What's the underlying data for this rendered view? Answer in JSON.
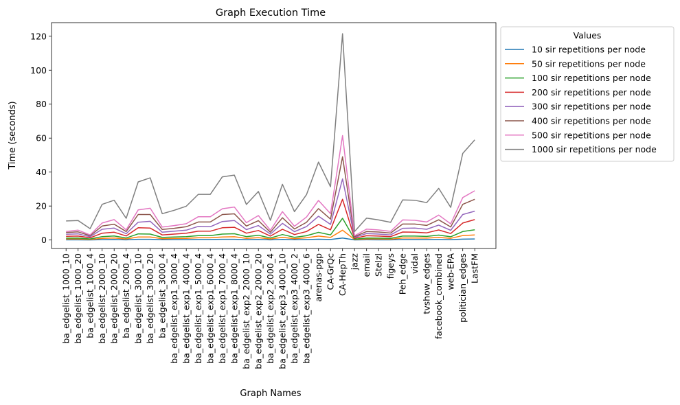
{
  "chart_data": {
    "type": "line",
    "title": "Graph Execution Time",
    "xlabel": "Graph Names",
    "ylabel": "Time (seconds)",
    "ylim": [
      -5,
      128
    ],
    "yticks": [
      0,
      20,
      40,
      60,
      80,
      100,
      120
    ],
    "grid": false,
    "legend": {
      "title": "Values",
      "placement": "outside-top-right"
    },
    "categories": [
      "ba_edgelist_1000_10",
      "ba_edgelist_1000_20",
      "ba_edgelist_1000_4",
      "ba_edgelist_2000_10",
      "ba_edgelist_2000_20",
      "ba_edgelist_2000_4",
      "ba_edgelist_3000_10",
      "ba_edgelist_3000_20",
      "ba_edgelist_3000_4",
      "ba_edgelist_exp1_3000_4",
      "ba_edgelist_exp1_4000_4",
      "ba_edgelist_exp1_5000_4",
      "ba_edgelist_exp1_6000_4",
      "ba_edgelist_exp1_7000_4",
      "ba_edgelist_exp1_8000_4",
      "ba_edgelist_exp2_2000_10",
      "ba_edgelist_exp2_2000_20",
      "ba_edgelist_exp2_2000_4",
      "ba_edgelist_exp3_4000_10",
      "ba_edgelist_exp3_4000_2",
      "ba_edgelist_exp3_4000_6",
      "arenas-pgp",
      "CA-GrQc",
      "CA-HepTh",
      "jazz",
      "email",
      "Stelzl",
      "figeys",
      "Peh_edge",
      "vidal",
      "tvshow_edges",
      "facebook_combined",
      "web-EPA",
      "politician_edges",
      "LastFM"
    ],
    "series": [
      {
        "name": "10 sir repetitions per node",
        "color": "#1f77b4",
        "values": [
          0.1,
          0.1,
          0.05,
          0.2,
          0.25,
          0.1,
          0.4,
          0.4,
          0.15,
          0.2,
          0.2,
          0.3,
          0.3,
          0.4,
          0.4,
          0.2,
          0.3,
          0.1,
          0.35,
          0.15,
          0.25,
          0.45,
          0.3,
          1.2,
          0.05,
          0.15,
          0.1,
          0.1,
          0.25,
          0.25,
          0.25,
          0.3,
          0.2,
          0.5,
          0.6
        ]
      },
      {
        "name": "50 sir repetitions per node",
        "color": "#ff7f0e",
        "values": [
          0.6,
          0.6,
          0.3,
          1.0,
          1.2,
          0.6,
          1.8,
          1.8,
          0.8,
          0.9,
          1.0,
          1.3,
          1.3,
          1.8,
          1.9,
          1.0,
          1.4,
          0.6,
          1.6,
          0.8,
          1.3,
          2.3,
          1.5,
          5.8,
          0.3,
          0.6,
          0.6,
          0.5,
          1.2,
          1.2,
          1.1,
          1.5,
          1.0,
          2.6,
          3.0
        ]
      },
      {
        "name": "100 sir repetitions per node",
        "color": "#2ca02c",
        "values": [
          1.1,
          1.2,
          0.6,
          2.0,
          2.4,
          1.2,
          3.6,
          3.5,
          1.5,
          1.8,
          2.0,
          2.6,
          2.6,
          3.5,
          3.7,
          2.0,
          2.8,
          1.2,
          3.2,
          1.6,
          2.5,
          4.5,
          3.0,
          12.8,
          0.5,
          1.2,
          1.1,
          1.0,
          2.3,
          2.3,
          2.1,
          2.9,
          1.9,
          5.0,
          6.0
        ]
      },
      {
        "name": "200 sir repetitions per node",
        "color": "#d62728",
        "values": [
          2.2,
          2.3,
          1.3,
          4.0,
          4.6,
          2.4,
          7.2,
          7.0,
          3.0,
          3.5,
          4.0,
          5.2,
          5.2,
          7.2,
          7.5,
          4.0,
          5.6,
          2.3,
          6.3,
          3.2,
          5.0,
          9.2,
          6.0,
          24.0,
          1.0,
          2.5,
          2.3,
          2.0,
          4.7,
          4.6,
          4.2,
          5.9,
          3.8,
          10.0,
          12.0
        ]
      },
      {
        "name": "300 sir repetitions per node",
        "color": "#9467bd",
        "values": [
          3.4,
          3.6,
          1.9,
          6.3,
          7.0,
          3.7,
          10.5,
          11.0,
          4.6,
          5.2,
          5.8,
          8.0,
          7.8,
          10.9,
          11.5,
          6.1,
          8.5,
          3.5,
          9.8,
          4.9,
          7.9,
          14.0,
          9.2,
          36.0,
          1.5,
          3.8,
          3.5,
          3.0,
          6.9,
          7.0,
          6.3,
          8.8,
          5.7,
          15.0,
          17.0
        ]
      },
      {
        "name": "400 sir repetitions per node",
        "color": "#8c564b",
        "values": [
          4.4,
          4.8,
          2.5,
          8.2,
          9.3,
          5.0,
          15.0,
          15.0,
          6.2,
          6.9,
          7.8,
          10.6,
          10.6,
          15.0,
          15.4,
          8.2,
          11.4,
          4.6,
          13.1,
          6.5,
          10.4,
          18.5,
          12.3,
          49.0,
          2.0,
          5.0,
          4.7,
          4.1,
          9.4,
          9.4,
          8.6,
          11.9,
          7.7,
          21.0,
          24.0
        ]
      },
      {
        "name": "500 sir repetitions per node",
        "color": "#e377c2",
        "values": [
          5.0,
          5.8,
          3.0,
          10.0,
          12.0,
          6.0,
          17.7,
          18.7,
          7.6,
          8.5,
          9.6,
          13.7,
          13.7,
          18.4,
          19.4,
          10.2,
          14.4,
          5.7,
          16.7,
          8.1,
          13.5,
          23.3,
          15.5,
          61.5,
          2.5,
          6.4,
          5.9,
          5.1,
          11.8,
          11.6,
          10.6,
          14.7,
          9.5,
          25.0,
          29.0
        ]
      },
      {
        "name": "1000 sir repetitions per node",
        "color": "#7f7f7f",
        "values": [
          11.2,
          11.5,
          6.7,
          21.0,
          23.4,
          12.8,
          34.2,
          36.6,
          15.5,
          17.5,
          19.9,
          26.9,
          26.9,
          37.2,
          38.2,
          20.9,
          28.6,
          11.6,
          32.8,
          16.7,
          26.7,
          45.9,
          31.4,
          121.5,
          5.0,
          12.9,
          11.8,
          10.4,
          23.6,
          23.4,
          22.0,
          30.4,
          19.2,
          51.0,
          59.0
        ]
      }
    ]
  }
}
